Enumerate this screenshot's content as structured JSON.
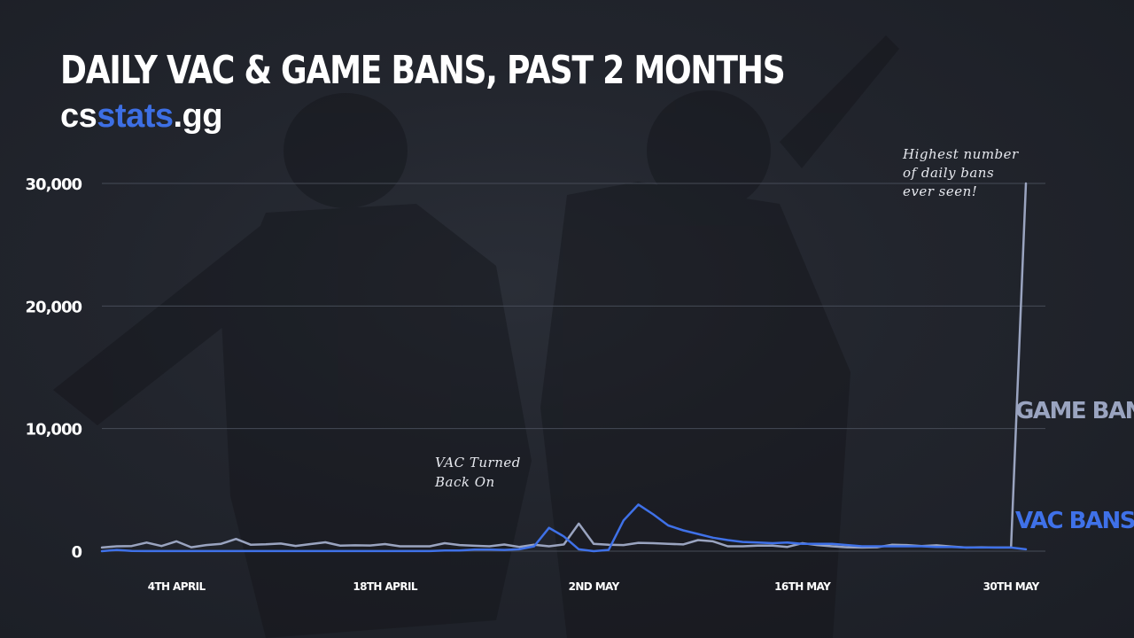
{
  "header": {
    "title": "DAILY VAC & GAME BANS, PAST 2 MONTHS",
    "brand_prefix": "cs",
    "brand_accent": "stats",
    "brand_suffix": ".gg"
  },
  "colors": {
    "brand_blue": "#3d6fe4",
    "vac_line": "#3f71e8",
    "game_line": "#9aa4c0",
    "grid": "#464b57",
    "text": "#ffffff"
  },
  "chart_data": {
    "type": "line",
    "title": "DAILY VAC & GAME BANS, PAST 2 MONTHS",
    "xlabel": "",
    "ylabel": "",
    "ylim": [
      0,
      30000
    ],
    "yticks": [
      {
        "value": 0,
        "label": "0"
      },
      {
        "value": 10000,
        "label": "10,000"
      },
      {
        "value": 20000,
        "label": "20,000"
      },
      {
        "value": 30000,
        "label": "30,000"
      }
    ],
    "xticks": [
      {
        "index": 5,
        "label": "4TH APRIL"
      },
      {
        "index": 19,
        "label": "18TH APRIL"
      },
      {
        "index": 33,
        "label": "2ND MAY"
      },
      {
        "index": 47,
        "label": "16TH MAY"
      },
      {
        "index": 61,
        "label": "30TH MAY"
      }
    ],
    "grid": true,
    "legend": "right, beside lines",
    "series": [
      {
        "name": "GAME BANS",
        "color": "#9aa4c0",
        "values": [
          300,
          400,
          420,
          700,
          420,
          800,
          320,
          500,
          600,
          1000,
          520,
          560,
          620,
          430,
          580,
          720,
          450,
          480,
          460,
          580,
          400,
          400,
          400,
          650,
          500,
          440,
          400,
          540,
          350,
          520,
          400,
          550,
          2250,
          600,
          520,
          500,
          680,
          650,
          600,
          550,
          900,
          800,
          400,
          400,
          450,
          450,
          350,
          650,
          500,
          400,
          320,
          300,
          320,
          520,
          500,
          420,
          480,
          380,
          300,
          320,
          300,
          300,
          30000
        ]
      },
      {
        "name": "VAC BANS",
        "color": "#3f71e8",
        "values": [
          0,
          100,
          20,
          10,
          10,
          10,
          10,
          10,
          10,
          10,
          10,
          10,
          10,
          10,
          10,
          10,
          10,
          10,
          10,
          10,
          10,
          10,
          10,
          60,
          60,
          120,
          120,
          100,
          150,
          400,
          1900,
          1200,
          150,
          0,
          100,
          2500,
          3800,
          3000,
          2100,
          1700,
          1400,
          1100,
          900,
          750,
          700,
          650,
          700,
          600,
          600,
          600,
          500,
          400,
          400,
          400,
          400,
          400,
          350,
          350,
          300,
          300,
          300,
          300,
          150
        ]
      }
    ],
    "annotations": [
      {
        "lines": [
          "VAC Turned",
          "Back On"
        ]
      },
      {
        "lines": [
          "Highest number",
          "of daily bans",
          "ever seen!"
        ]
      }
    ]
  }
}
